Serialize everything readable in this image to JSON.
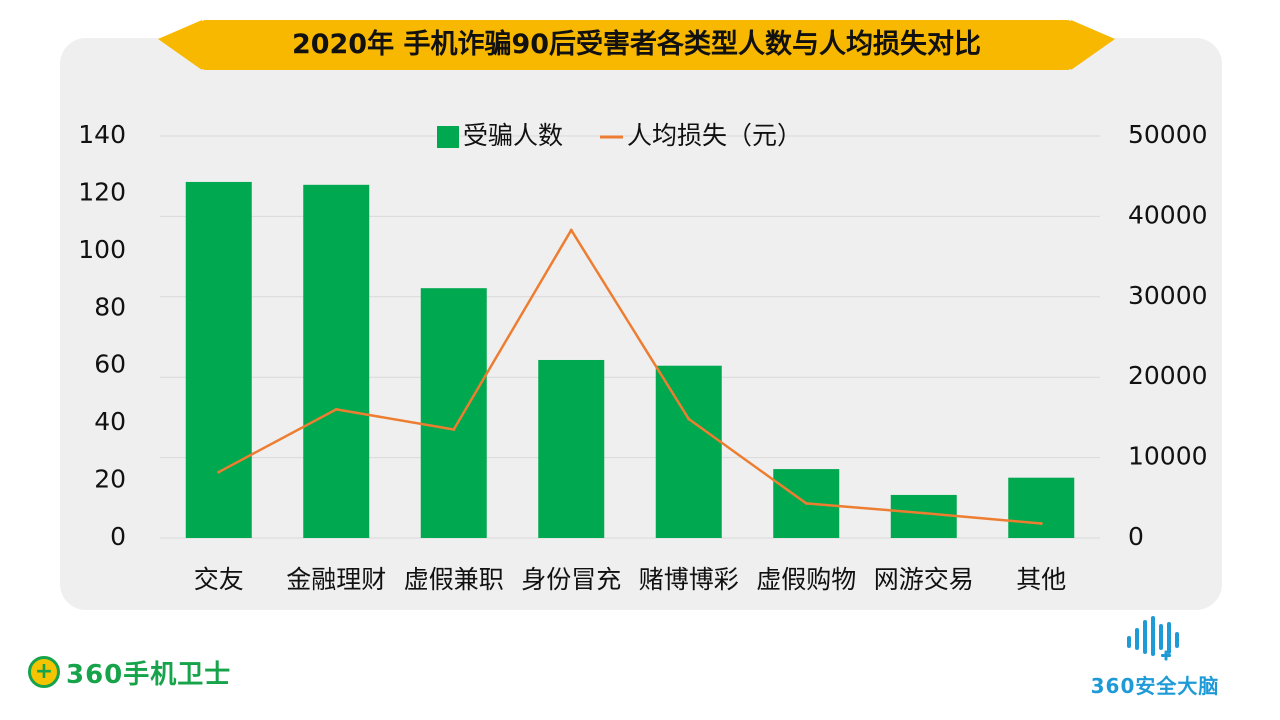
{
  "title": "2020年 手机诈骗90后受害者各类型人数与人均损失对比",
  "colors": {
    "bar": "#00a84f",
    "line": "#ed7d31",
    "ribbon": "#f8b800",
    "panel": "#efefef",
    "grid": "#d9d9d9",
    "text": "#111111",
    "logo_green": "#16a34a",
    "logo_blue": "#1e9bd7"
  },
  "logos": {
    "left_text": "360手机卫士",
    "right_text": "360安全大脑"
  },
  "chart_data": {
    "type": "bar",
    "categories": [
      "交友",
      "金融理财",
      "虚假兼职",
      "身份冒充",
      "赌博博彩",
      "虚假购物",
      "网游交易",
      "其他"
    ],
    "series": [
      {
        "name": "受骗人数",
        "type": "bar",
        "axis": "left",
        "values": [
          124,
          123,
          87,
          62,
          60,
          24,
          15,
          21
        ]
      },
      {
        "name": "人均损失（元）",
        "type": "line",
        "axis": "right",
        "values": [
          8200,
          16000,
          13500,
          38300,
          14800,
          4300,
          3100,
          1800
        ]
      }
    ],
    "y_left": {
      "ylim": [
        0,
        140
      ],
      "ticks": [
        "140",
        "120",
        "100",
        "80",
        "60",
        "40",
        "20",
        "0"
      ]
    },
    "y_right": {
      "ylim": [
        0,
        50000
      ],
      "ticks": [
        "50000",
        "40000",
        "30000",
        "20000",
        "10000",
        "0"
      ]
    },
    "legend": {
      "position": "top"
    },
    "grid": true
  }
}
